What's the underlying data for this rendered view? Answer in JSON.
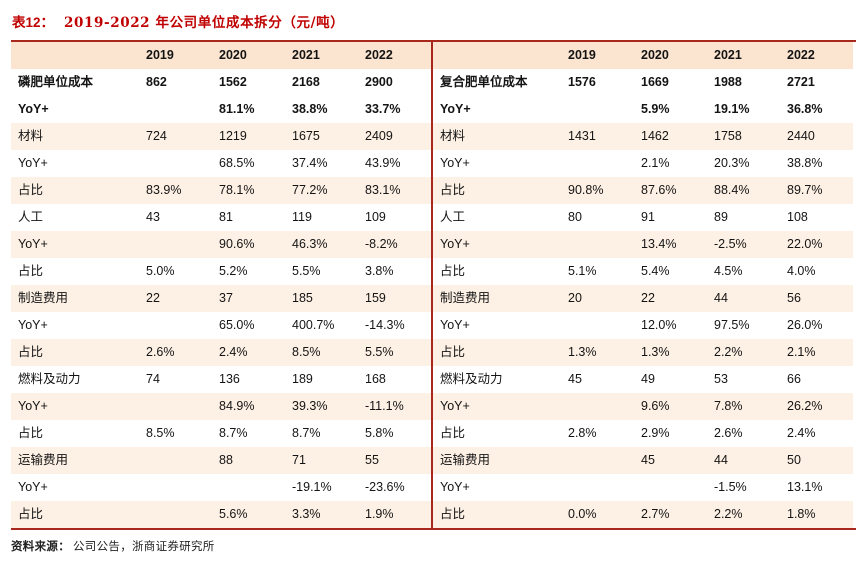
{
  "page": {
    "title_prefix": "表12：",
    "title": "2019-2022 年公司单位成本拆分（元/吨）",
    "source_label": "资料来源：",
    "source": "公司公告，浙商证券研究所"
  },
  "colors": {
    "title_color": "#C00000",
    "line_color": "#A9281E",
    "header_bg": "#FBE5D0",
    "stripe_bg": "#FDF0E4"
  },
  "chart_data": [
    {
      "type": "table",
      "title": "磷肥单位成本",
      "columns": [
        "",
        "2019",
        "2020",
        "2021",
        "2022"
      ],
      "rows": [
        {
          "label": "磷肥单位成本",
          "values": [
            "862",
            "1562",
            "2168",
            "2900"
          ],
          "bold": true
        },
        {
          "label": "YoY+",
          "values": [
            "",
            "81.1%",
            "38.8%",
            "33.7%"
          ],
          "bold": true
        },
        {
          "label": "材料",
          "values": [
            "724",
            "1219",
            "1675",
            "2409"
          ],
          "bold": false
        },
        {
          "label": "YoY+",
          "values": [
            "",
            "68.5%",
            "37.4%",
            "43.9%"
          ],
          "bold": false
        },
        {
          "label": "占比",
          "values": [
            "83.9%",
            "78.1%",
            "77.2%",
            "83.1%"
          ],
          "bold": false
        },
        {
          "label": "人工",
          "values": [
            "43",
            "81",
            "119",
            "109"
          ],
          "bold": false
        },
        {
          "label": "YoY+",
          "values": [
            "",
            "90.6%",
            "46.3%",
            "-8.2%"
          ],
          "bold": false
        },
        {
          "label": "占比",
          "values": [
            "5.0%",
            "5.2%",
            "5.5%",
            "3.8%"
          ],
          "bold": false
        },
        {
          "label": "制造费用",
          "values": [
            "22",
            "37",
            "185",
            "159"
          ],
          "bold": false
        },
        {
          "label": "YoY+",
          "values": [
            "",
            "65.0%",
            "400.7%",
            "-14.3%"
          ],
          "bold": false
        },
        {
          "label": "占比",
          "values": [
            "2.6%",
            "2.4%",
            "8.5%",
            "5.5%"
          ],
          "bold": false
        },
        {
          "label": "燃料及动力",
          "values": [
            "74",
            "136",
            "189",
            "168"
          ],
          "bold": false
        },
        {
          "label": "YoY+",
          "values": [
            "",
            "84.9%",
            "39.3%",
            "-11.1%"
          ],
          "bold": false
        },
        {
          "label": "占比",
          "values": [
            "8.5%",
            "8.7%",
            "8.7%",
            "5.8%"
          ],
          "bold": false
        },
        {
          "label": "运输费用",
          "values": [
            "",
            "88",
            "71",
            "55"
          ],
          "bold": false
        },
        {
          "label": "YoY+",
          "values": [
            "",
            "",
            "-19.1%",
            "-23.6%"
          ],
          "bold": false
        },
        {
          "label": "占比",
          "values": [
            "",
            "5.6%",
            "3.3%",
            "1.9%"
          ],
          "bold": false
        }
      ]
    },
    {
      "type": "table",
      "title": "复合肥单位成本",
      "columns": [
        "",
        "2019",
        "2020",
        "2021",
        "2022"
      ],
      "rows": [
        {
          "label": "复合肥单位成本",
          "values": [
            "1576",
            "1669",
            "1988",
            "2721"
          ],
          "bold": true
        },
        {
          "label": "YoY+",
          "values": [
            "",
            "5.9%",
            "19.1%",
            "36.8%"
          ],
          "bold": true
        },
        {
          "label": "材料",
          "values": [
            "1431",
            "1462",
            "1758",
            "2440"
          ],
          "bold": false
        },
        {
          "label": "YoY+",
          "values": [
            "",
            "2.1%",
            "20.3%",
            "38.8%"
          ],
          "bold": false
        },
        {
          "label": "占比",
          "values": [
            "90.8%",
            "87.6%",
            "88.4%",
            "89.7%"
          ],
          "bold": false
        },
        {
          "label": "人工",
          "values": [
            "80",
            "91",
            "89",
            "108"
          ],
          "bold": false
        },
        {
          "label": "YoY+",
          "values": [
            "",
            "13.4%",
            "-2.5%",
            "22.0%"
          ],
          "bold": false
        },
        {
          "label": "占比",
          "values": [
            "5.1%",
            "5.4%",
            "4.5%",
            "4.0%"
          ],
          "bold": false
        },
        {
          "label": "制造费用",
          "values": [
            "20",
            "22",
            "44",
            "56"
          ],
          "bold": false
        },
        {
          "label": "YoY+",
          "values": [
            "",
            "12.0%",
            "97.5%",
            "26.0%"
          ],
          "bold": false
        },
        {
          "label": "占比",
          "values": [
            "1.3%",
            "1.3%",
            "2.2%",
            "2.1%"
          ],
          "bold": false
        },
        {
          "label": "燃料及动力",
          "values": [
            "45",
            "49",
            "53",
            "66"
          ],
          "bold": false
        },
        {
          "label": "YoY+",
          "values": [
            "",
            "9.6%",
            "7.8%",
            "26.2%"
          ],
          "bold": false
        },
        {
          "label": "占比",
          "values": [
            "2.8%",
            "2.9%",
            "2.6%",
            "2.4%"
          ],
          "bold": false
        },
        {
          "label": "运输费用",
          "values": [
            "",
            "45",
            "44",
            "50"
          ],
          "bold": false
        },
        {
          "label": "YoY+",
          "values": [
            "",
            "",
            "-1.5%",
            "13.1%"
          ],
          "bold": false
        },
        {
          "label": "占比",
          "values": [
            "0.0%",
            "2.7%",
            "2.2%",
            "1.8%"
          ],
          "bold": false
        }
      ]
    }
  ]
}
